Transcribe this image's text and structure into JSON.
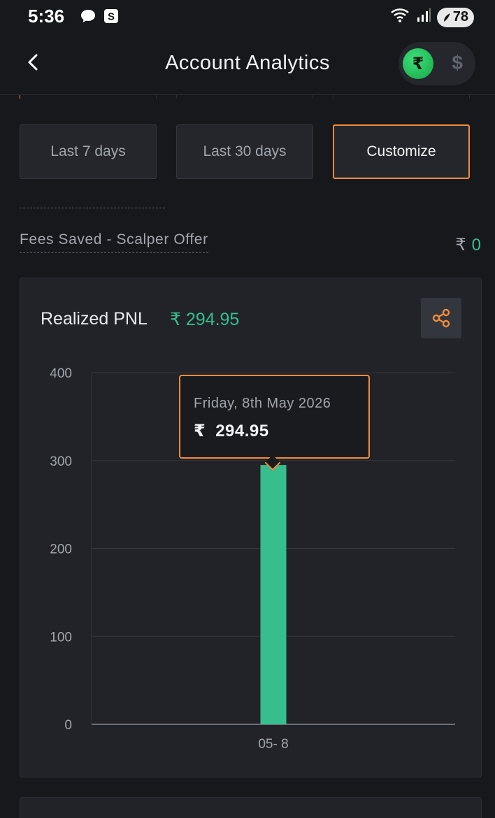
{
  "status_bar": {
    "time": "5:36",
    "battery": "78",
    "icons": [
      "chat-bubble-icon",
      "s-app-icon",
      "wifi-icon",
      "signal-icon",
      "battery-icon"
    ]
  },
  "header": {
    "title": "Account Analytics",
    "currency_inr": "₹",
    "currency_usd": "$",
    "selected_currency": "INR"
  },
  "range_buttons": [
    {
      "label": "Last 7 days",
      "active": false
    },
    {
      "label": "Last 30 days",
      "active": false
    },
    {
      "label": "Customize",
      "active": true
    }
  ],
  "fees": {
    "label": "Fees Saved - Scalper Offer",
    "currency": "₹",
    "value": "0"
  },
  "pnl_card": {
    "title": "Realized PNL",
    "value": "₹ 294.95",
    "tooltip": {
      "date": "Friday, 8th May 2026",
      "currency": "₹",
      "value": "294.95"
    }
  },
  "colors": {
    "accent": "#f28b3c",
    "positive": "#37be8e",
    "background": "#17181c",
    "card": "#212328"
  },
  "chart_data": {
    "type": "bar",
    "categories": [
      "05- 8"
    ],
    "values": [
      294.95
    ],
    "title": "",
    "xlabel": "",
    "ylabel": "",
    "ylim": [
      0,
      400
    ],
    "yticks": [
      0,
      100,
      200,
      300,
      400
    ],
    "grid": true,
    "bar_color": "#37be8e"
  }
}
